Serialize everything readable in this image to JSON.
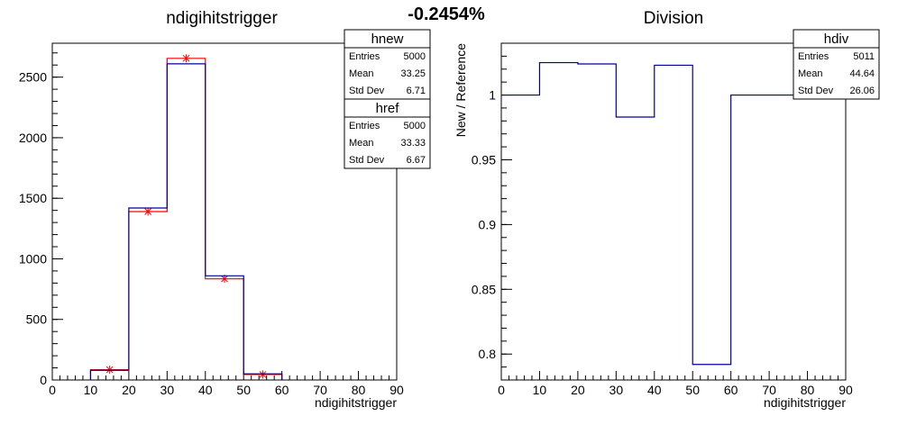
{
  "header": {
    "difference": "-0.2454%"
  },
  "chart_data": [
    {
      "type": "bar",
      "title": "ndigihitstrigger",
      "xlabel": "ndigihitstrigger",
      "ylabel": "",
      "xlim": [
        0,
        90
      ],
      "ylim": [
        0,
        2780
      ],
      "xticks": [
        0,
        10,
        20,
        30,
        40,
        50,
        60,
        70,
        80,
        90
      ],
      "yticks": [
        0,
        500,
        1000,
        1500,
        2000,
        2500
      ],
      "bin_edges": [
        10,
        20,
        30,
        40,
        50,
        60
      ],
      "series": [
        {
          "name": "hnew",
          "color": "#000099",
          "values": [
            80,
            1420,
            2610,
            860,
            50
          ]
        },
        {
          "name": "href",
          "color": "#ff0000",
          "values": [
            85,
            1390,
            2655,
            835,
            45
          ]
        }
      ],
      "stats": [
        {
          "name": "hnew",
          "rows": [
            [
              "Entries",
              "5000"
            ],
            [
              "Mean",
              "33.25"
            ],
            [
              "Std Dev",
              "6.71"
            ]
          ]
        },
        {
          "name": "href",
          "rows": [
            [
              "Entries",
              "5000"
            ],
            [
              "Mean",
              "33.33"
            ],
            [
              "Std Dev",
              "6.67"
            ]
          ]
        }
      ]
    },
    {
      "type": "line",
      "title": "Division",
      "xlabel": "ndigihitstrigger",
      "ylabel": "New / Reference",
      "xlim": [
        0,
        90
      ],
      "ylim": [
        0.78,
        1.04
      ],
      "xticks": [
        0,
        10,
        20,
        30,
        40,
        50,
        60,
        70,
        80,
        90
      ],
      "yticks": [
        0.8,
        0.85,
        0.9,
        0.95,
        1
      ],
      "bin_edges": [
        0,
        10,
        20,
        30,
        40,
        50,
        60,
        90
      ],
      "series": [
        {
          "name": "hdiv",
          "color": "#000099",
          "values": [
            1.0,
            1.025,
            1.024,
            0.983,
            1.023,
            0.792,
            1.0
          ]
        }
      ],
      "stats": [
        {
          "name": "hdiv",
          "rows": [
            [
              "Entries",
              "5011"
            ],
            [
              "Mean",
              "44.64"
            ],
            [
              "Std Dev",
              "26.06"
            ]
          ]
        }
      ]
    }
  ]
}
